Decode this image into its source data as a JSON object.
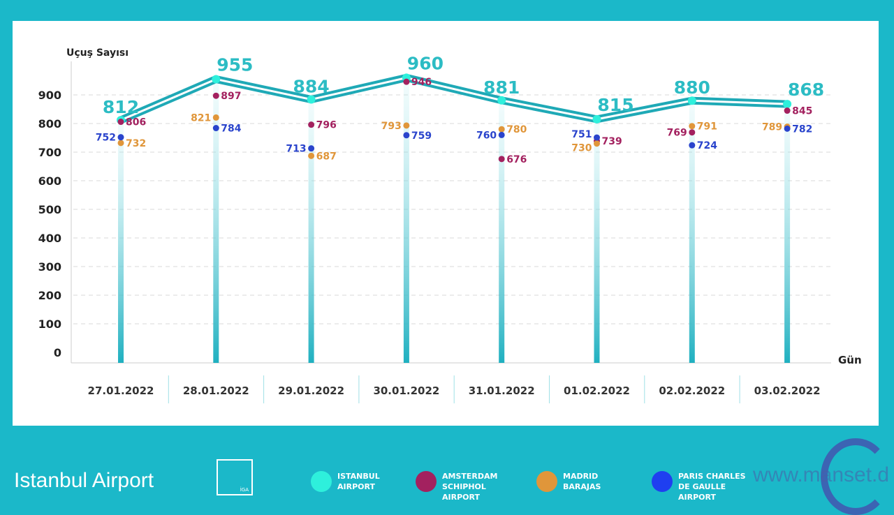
{
  "chart_data": {
    "type": "line",
    "ylabel": "Uçuş Sayısı",
    "xlabel": "Gün",
    "ylim": [
      0,
      900
    ],
    "yticks": [
      0,
      100,
      200,
      300,
      400,
      500,
      600,
      700,
      800,
      900
    ],
    "grid": true,
    "legend_position": "bottom",
    "categories": [
      "27.01.2022",
      "28.01.2022",
      "29.01.2022",
      "30.01.2022",
      "31.01.2022",
      "01.02.2022",
      "02.02.2022",
      "03.02.2022"
    ],
    "series": [
      {
        "name": "ISTANBUL AIRPORT",
        "color": "#2cc6cc",
        "style": "line",
        "values": [
          812,
          955,
          884,
          960,
          881,
          815,
          880,
          868
        ]
      },
      {
        "name": "AMSTERDAM SCHIPHOL AIRPORT",
        "color": "#a3215f",
        "style": "scatter",
        "values": [
          806,
          897,
          796,
          946,
          676,
          739,
          769,
          845
        ]
      },
      {
        "name": "MADRID BARAJAS",
        "color": "#e0963a",
        "style": "scatter",
        "values": [
          732,
          821,
          687,
          793,
          780,
          730,
          791,
          789
        ]
      },
      {
        "name": "PARIS CHARLES DE GAULLE AIRPORT",
        "color": "#2a44cc",
        "style": "scatter",
        "values": [
          752,
          784,
          713,
          759,
          760,
          751,
          724,
          782
        ]
      }
    ]
  },
  "branding": {
    "logo_text": "Istanbul Airport",
    "logo_badge": "İGA",
    "watermark": "www.manset.d"
  }
}
